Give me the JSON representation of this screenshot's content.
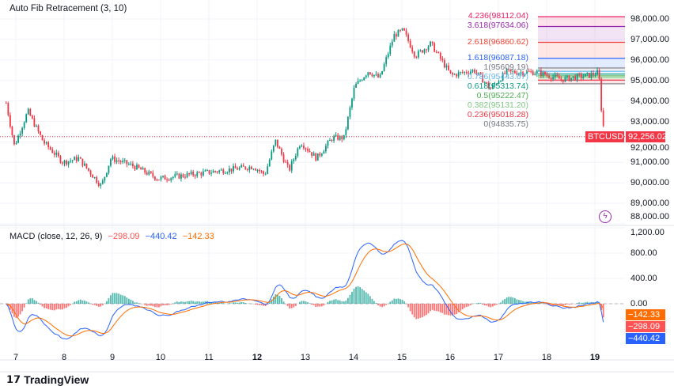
{
  "header": {
    "indicator_title": "Auto Fib Retracement (3, 10)"
  },
  "macd": {
    "title": "MACD (close, 12, 26, 9)",
    "histogram": "−298.09",
    "macd": "−440.42",
    "signal": "−142.33",
    "tags": {
      "signal": "−142.33",
      "histogram": "−298.09",
      "macd": "−440.42"
    },
    "axis": [
      "1,200.00",
      "800.00",
      "400.00",
      "0.00"
    ],
    "colors": {
      "macd": "#2962ff",
      "signal": "#ff6d00",
      "hist_up": "#26a69a",
      "hist_down": "#ff5252"
    }
  },
  "price": {
    "symbol": "BTCUSD",
    "last": "92,256.02",
    "axis": [
      "98,000.00",
      "97,000.00",
      "96,000.00",
      "95,000.00",
      "94,000.00",
      "93,000.00",
      "92,000.00",
      "91,000.00",
      "90,000.00",
      "89,000.00",
      "88,000.00"
    ],
    "colors": {
      "up": "#089981",
      "down": "#f23645"
    }
  },
  "fib": [
    {
      "label": "4.236(98112.04)",
      "ratio": 4.236,
      "price": 98112.04,
      "color": "#e91e63"
    },
    {
      "label": "3.618(97634.06)",
      "ratio": 3.618,
      "price": 97634.06,
      "color": "#9c27b0"
    },
    {
      "label": "2.618(96860.62)",
      "ratio": 2.618,
      "price": 96860.62,
      "color": "#f44336"
    },
    {
      "label": "1.618(96087.18)",
      "ratio": 1.618,
      "price": 96087.18,
      "color": "#2962ff"
    },
    {
      "label": "1(95609.19)",
      "ratio": 1,
      "price": 95609.19,
      "color": "#787b86"
    },
    {
      "label": "0.786(95443.67)",
      "ratio": 0.786,
      "price": 95443.67,
      "color": "#64b5f6"
    },
    {
      "label": "0.618(95313.74)",
      "ratio": 0.618,
      "price": 95313.74,
      "color": "#089981"
    },
    {
      "label": "0.5(95222.47)",
      "ratio": 0.5,
      "price": 95222.47,
      "color": "#4caf50"
    },
    {
      "label": "0.382(95131.20)",
      "ratio": 0.382,
      "price": 95131.2,
      "color": "#81c784"
    },
    {
      "label": "0.236(95018.28)",
      "ratio": 0.236,
      "price": 95018.28,
      "color": "#f23645"
    },
    {
      "label": "0(94835.75)",
      "ratio": 0,
      "price": 94835.75,
      "color": "#787b86"
    }
  ],
  "time_axis": [
    "7",
    "8",
    "9",
    "10",
    "11",
    "12",
    "13",
    "14",
    "15",
    "16",
    "17",
    "18",
    "19"
  ],
  "footer": {
    "brand": "TradingView"
  },
  "chart_data": {
    "type": "candlestick",
    "title": "BTCUSD",
    "ylim": [
      88000,
      98000
    ],
    "x_unit": "day of month",
    "xlim": [
      6.8,
      19.3
    ],
    "close_path": [
      [
        6.8,
        93900
      ],
      [
        6.97,
        91800
      ],
      [
        7.25,
        93500
      ],
      [
        7.57,
        92000
      ],
      [
        7.98,
        91000
      ],
      [
        8.3,
        91200
      ],
      [
        8.77,
        89850
      ],
      [
        8.97,
        91200
      ],
      [
        9.46,
        90800
      ],
      [
        9.95,
        90200
      ],
      [
        10.93,
        90500
      ],
      [
        11.92,
        90800
      ],
      [
        12.16,
        90400
      ],
      [
        12.38,
        92050
      ],
      [
        12.66,
        90600
      ],
      [
        12.9,
        92000
      ],
      [
        13.23,
        91200
      ],
      [
        13.56,
        92200
      ],
      [
        13.8,
        92200
      ],
      [
        14.02,
        94700
      ],
      [
        14.3,
        95450
      ],
      [
        14.54,
        95100
      ],
      [
        14.84,
        97200
      ],
      [
        15.03,
        97450
      ],
      [
        15.28,
        96200
      ],
      [
        15.6,
        96800
      ],
      [
        16.02,
        95250
      ],
      [
        16.5,
        95500
      ],
      [
        16.84,
        94600
      ],
      [
        17.16,
        95400
      ],
      [
        17.82,
        95400
      ],
      [
        18.3,
        95050
      ],
      [
        18.88,
        95250
      ],
      [
        19.08,
        95400
      ],
      [
        19.13,
        93700
      ],
      [
        19.2,
        92256.02
      ]
    ],
    "macd_ylim": [
      -700,
      1200
    ]
  }
}
